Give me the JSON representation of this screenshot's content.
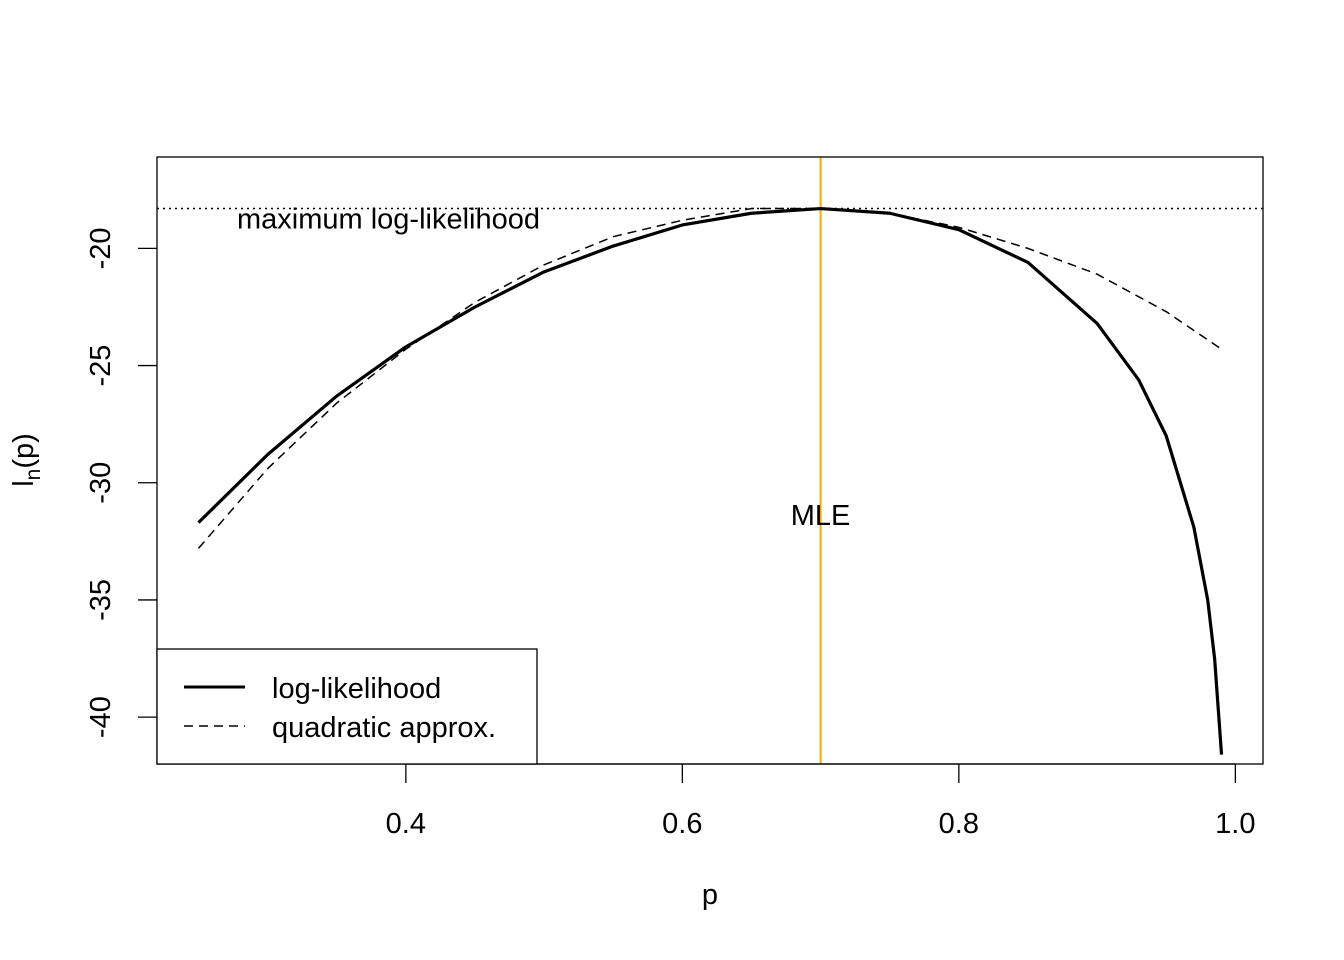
{
  "chart_data": {
    "type": "line",
    "title": "",
    "xlabel": "p",
    "ylabel": {
      "main": "l",
      "subscript": "n",
      "suffix": "(p)"
    },
    "xlim": [
      0.22,
      1.02
    ],
    "ylim": [
      -42,
      -16.1
    ],
    "x_ticks": [
      0.4,
      0.6,
      0.8,
      1.0
    ],
    "x_tick_labels": [
      "0.4",
      "0.6",
      "0.8",
      "1.0"
    ],
    "y_ticks": [
      -20,
      -25,
      -30,
      -35,
      -40
    ],
    "y_tick_labels": [
      "-20",
      "-25",
      "-30",
      "-35",
      "-40"
    ],
    "grid": false,
    "legend": {
      "position": "bottom-left",
      "entries": [
        {
          "label": "log-likelihood",
          "style": "solid"
        },
        {
          "label": "quadratic approx.",
          "style": "dashed"
        }
      ]
    },
    "series": [
      {
        "name": "log-likelihood",
        "style": "solid",
        "color": "#000000",
        "x": [
          0.25,
          0.3,
          0.35,
          0.4,
          0.45,
          0.5,
          0.55,
          0.6,
          0.65,
          0.7,
          0.75,
          0.8,
          0.85,
          0.9,
          0.93,
          0.95,
          0.97,
          0.98,
          0.985,
          0.99
        ],
        "y": [
          -31.7,
          -28.8,
          -26.3,
          -24.2,
          -22.5,
          -21.0,
          -19.9,
          -19.0,
          -18.5,
          -18.3,
          -18.5,
          -19.2,
          -20.6,
          -23.2,
          -25.6,
          -28.0,
          -31.9,
          -35.0,
          -37.5,
          -41.6
        ]
      },
      {
        "name": "quadratic approx.",
        "style": "dashed",
        "color": "#000000",
        "x": [
          0.25,
          0.3,
          0.35,
          0.4,
          0.45,
          0.5,
          0.55,
          0.6,
          0.65,
          0.7,
          0.75,
          0.8,
          0.85,
          0.9,
          0.95,
          0.99
        ],
        "y": [
          -32.8,
          -29.4,
          -26.6,
          -24.3,
          -22.3,
          -20.7,
          -19.5,
          -18.8,
          -18.3,
          -18.3,
          -18.5,
          -19.1,
          -20.0,
          -21.1,
          -22.7,
          -24.3
        ]
      }
    ],
    "reference_lines": {
      "horizontal": {
        "y": -18.3,
        "style": "dotted",
        "color": "#000000",
        "label": "maximum log-likelihood"
      },
      "vertical": {
        "x": 0.7,
        "style": "solid",
        "color": "#FFA500",
        "label": "MLE",
        "label_y": -31
      }
    }
  }
}
